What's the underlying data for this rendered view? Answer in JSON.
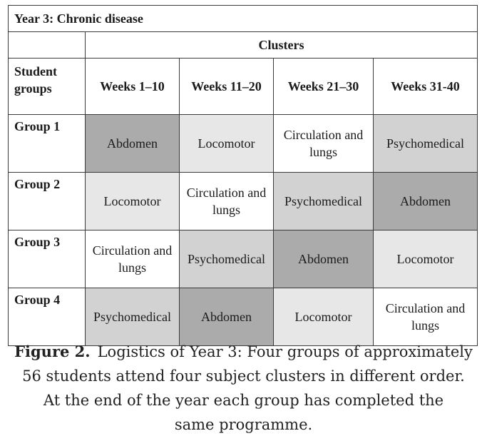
{
  "table": {
    "title": "Year 3: Chronic disease",
    "clusters_label": "Clusters",
    "groups_header_line1": "Student",
    "groups_header_line2": "groups",
    "weeks": [
      "Weeks 1–10",
      "Weeks 11–20",
      "Weeks 21–30",
      "Weeks 31-40"
    ],
    "rows": [
      {
        "group": "Group 1",
        "cells": [
          "Abdomen",
          "Locomotor",
          "Circulation and lungs",
          "Psychomedical"
        ]
      },
      {
        "group": "Group 2",
        "cells": [
          "Locomotor",
          "Circulation and lungs",
          "Psychomedical",
          "Abdomen"
        ]
      },
      {
        "group": "Group 3",
        "cells": [
          "Circulation and lungs",
          "Psychomedical",
          "Abdomen",
          "Locomotor"
        ]
      },
      {
        "group": "Group 4",
        "cells": [
          "Psychomedical",
          "Abdomen",
          "Locomotor",
          "Circulation and lungs"
        ]
      }
    ]
  },
  "cluster_colors": {
    "Abdomen": "#ababab",
    "Locomotor": "#e7e7e7",
    "Circulation and lungs": "#ffffff",
    "Psychomedical": "#d2d2d2"
  },
  "caption": {
    "label": "Figure 2.",
    "line1": "Logistics of Year 3: Four groups of approximately",
    "line2": "56 students attend four subject clusters in different order.",
    "line3": "At the end of the year each group has completed the",
    "line4": "same programme."
  }
}
